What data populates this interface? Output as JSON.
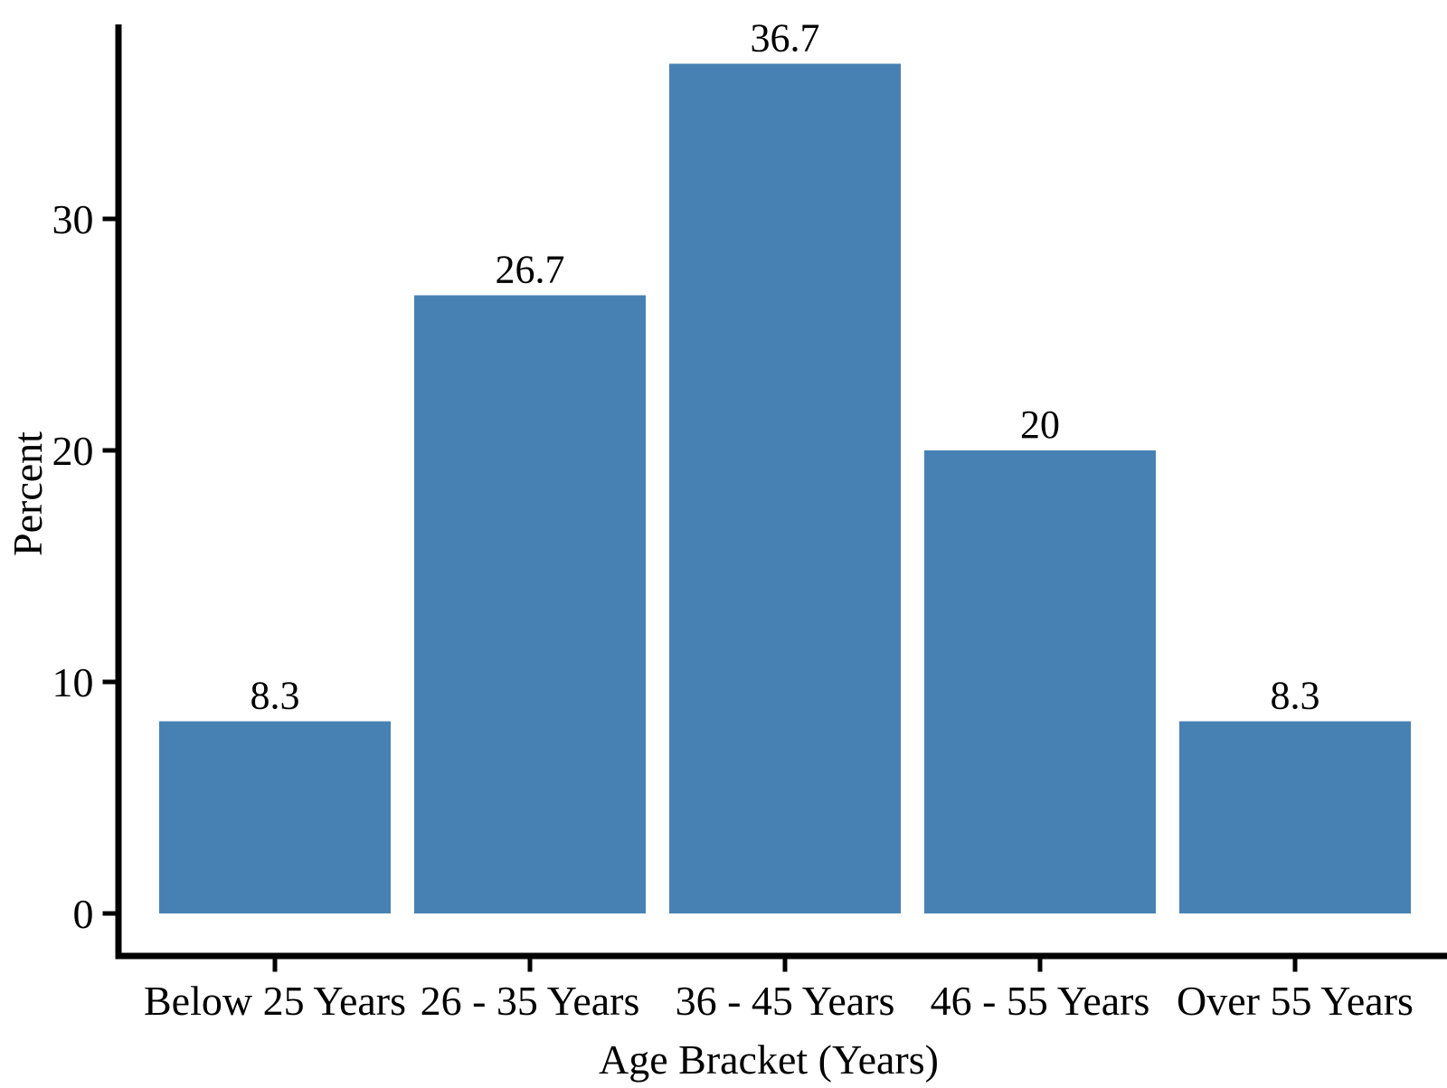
{
  "chart_data": {
    "type": "bar",
    "title": "",
    "xlabel": "Age Bracket (Years)",
    "ylabel": "Percent",
    "categories": [
      "Below 25 Years",
      "26 - 35 Years",
      "36 - 45 Years",
      "46 - 55 Years",
      "Over 55 Years"
    ],
    "values": [
      8.3,
      26.7,
      36.7,
      20,
      8.3
    ],
    "value_labels": [
      "8.3",
      "26.7",
      "36.7",
      "20",
      "8.3"
    ],
    "yticks": [
      0,
      10,
      20,
      30
    ],
    "ytick_labels": [
      "0",
      "10",
      "20",
      "30"
    ],
    "ylim": [
      0,
      38.4
    ],
    "grid": false,
    "legend": false,
    "bar_color": "#4781b4",
    "axis_color": "#000000",
    "text_color": "#000000",
    "background_color": "#ffffff"
  }
}
